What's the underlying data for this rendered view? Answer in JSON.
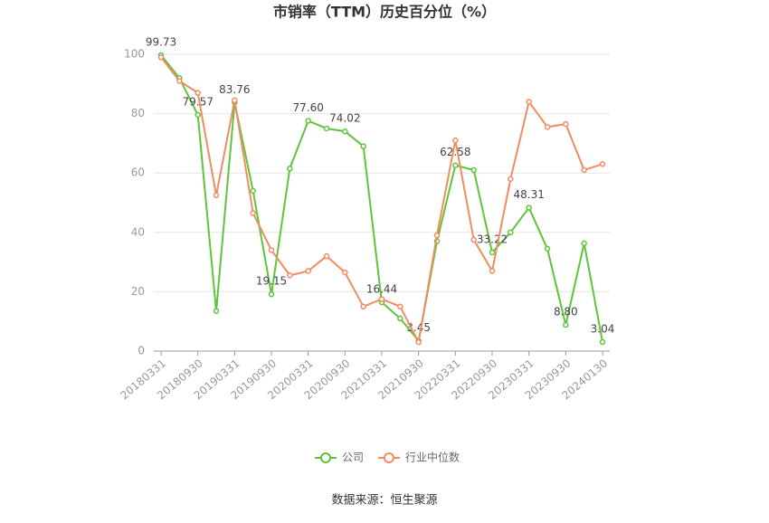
{
  "chart_data": {
    "type": "line",
    "title": "市销率（TTM）历史百分位（%）",
    "categories": [
      "20180331",
      null,
      "20180930",
      null,
      "20190331",
      null,
      "20190930",
      null,
      "20200331",
      null,
      "20200930",
      null,
      "20210331",
      null,
      "20210930",
      null,
      "20220331",
      null,
      "20220930",
      null,
      "20230331",
      null,
      "20230930",
      null,
      "20240130"
    ],
    "series": [
      {
        "name": "公司",
        "color": "#5ec53a",
        "values": [
          99.73,
          92,
          79.57,
          13.5,
          83.76,
          54,
          19.15,
          61.5,
          77.6,
          75,
          74.02,
          69,
          16.44,
          11,
          3.45,
          37,
          62.58,
          61,
          33.22,
          40,
          48.31,
          34.5,
          8.8,
          36.3,
          3.04
        ],
        "value_labels": [
          "99.73",
          null,
          "79.57",
          null,
          "83.76",
          null,
          "19.15",
          null,
          "77.60",
          null,
          "74.02",
          null,
          "16.44",
          null,
          "3.45",
          null,
          "62.58",
          null,
          "33.22",
          null,
          "48.31",
          null,
          "8.80",
          null,
          "3.04"
        ]
      },
      {
        "name": "行业中位数",
        "color": "#f08c5f",
        "values": [
          99,
          91,
          87,
          52.5,
          84.5,
          46.5,
          34,
          25.5,
          27,
          32,
          26.5,
          15,
          17.5,
          15,
          3,
          39,
          71,
          37.5,
          27,
          58,
          84,
          75.5,
          76.5,
          61,
          63
        ]
      }
    ],
    "ylim": [
      0,
      100
    ],
    "yticks": [
      0,
      20,
      40,
      60,
      80,
      100
    ],
    "grid": true,
    "source": "数据来源：恒生聚源"
  }
}
